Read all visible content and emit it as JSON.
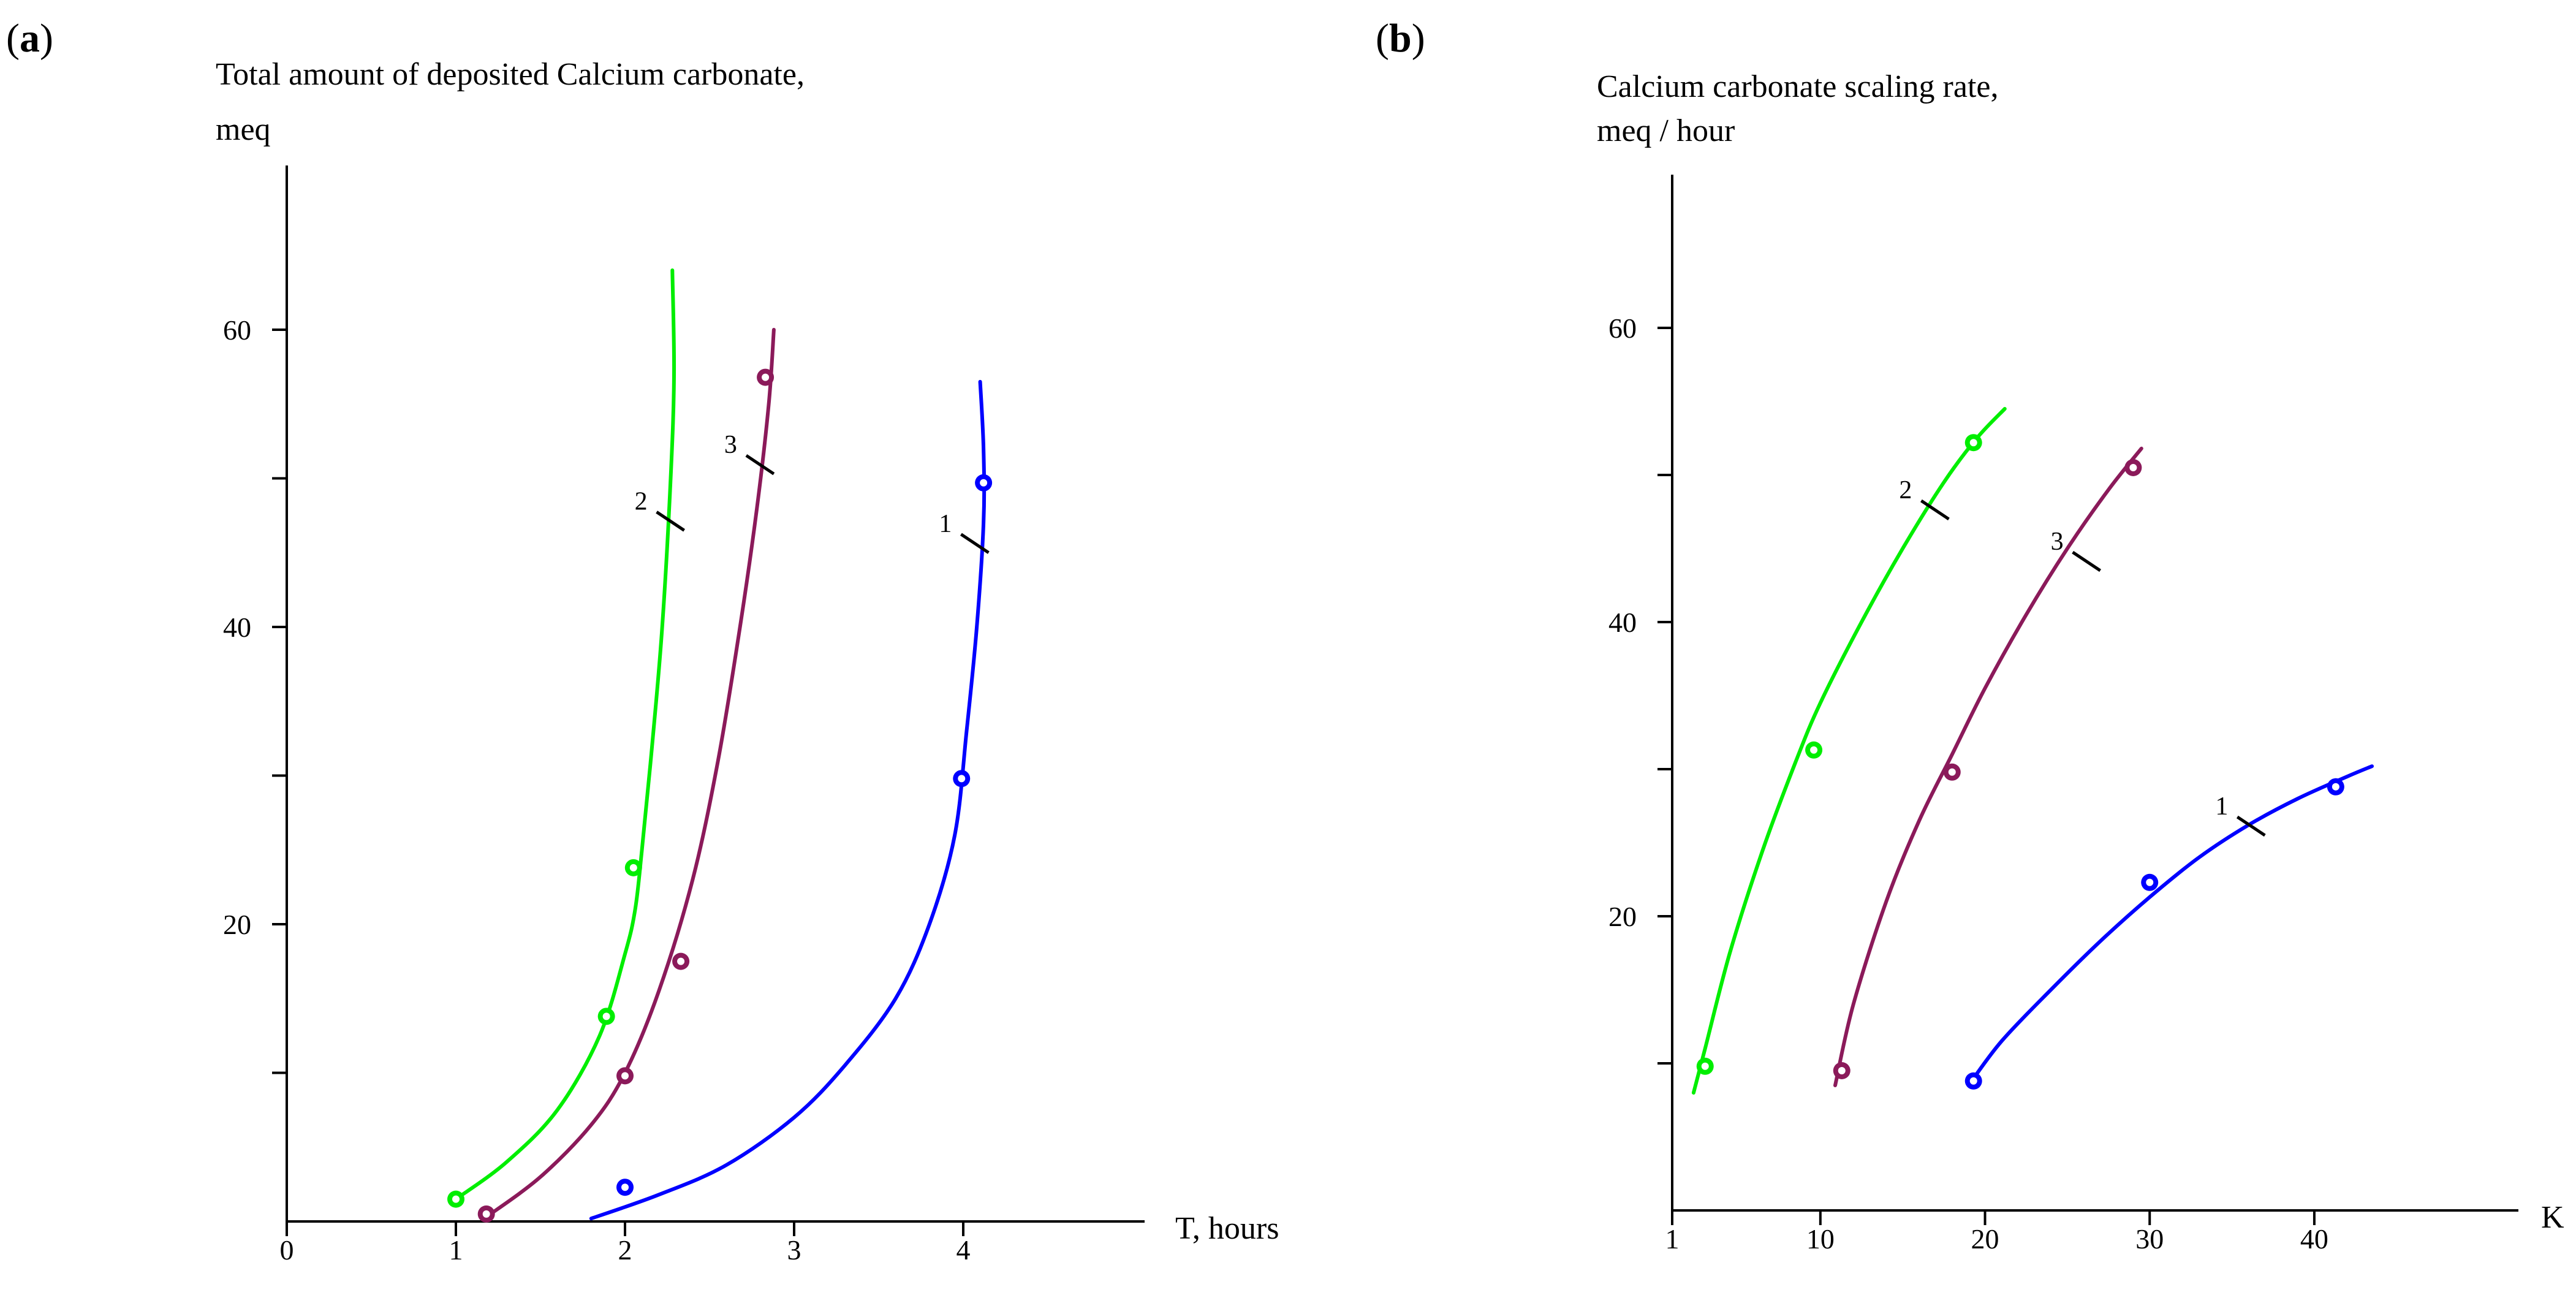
{
  "chart_data": [
    {
      "type": "line",
      "panel": "(a)",
      "panel_letter": "a",
      "title_line1": "Total amount of deposited Calcium carbonate,",
      "title_line2": "meq",
      "xlabel": "T, hours",
      "ylabel": "meq",
      "xlim": [
        0,
        5
      ],
      "ylim": [
        0,
        70
      ],
      "xticks": [
        0,
        1,
        2,
        3,
        4
      ],
      "xtick_labels": [
        "0",
        "1",
        "2",
        "3",
        "4"
      ],
      "yticks": [
        10,
        20,
        30,
        40,
        50,
        60
      ],
      "ytick_labels": [
        "",
        "20",
        "",
        "40",
        "",
        "60"
      ],
      "series": [
        {
          "name": "1",
          "color": "#0000ff",
          "curve_x": [
            1.8,
            2.2,
            2.6,
            3.0,
            3.3,
            3.6,
            3.8,
            3.95,
            4.02,
            4.08,
            4.12,
            4.12,
            4.1
          ],
          "curve_y": [
            0.2,
            1.8,
            3.8,
            7.0,
            10.5,
            15.0,
            20.0,
            26.0,
            33.0,
            40.0,
            47.0,
            52.0,
            56.5
          ],
          "points_x": [
            2.0,
            3.99,
            4.12
          ],
          "points_y": [
            2.3,
            29.8,
            49.7
          ],
          "label_x": 4.15,
          "label_y": 45.0
        },
        {
          "name": "2",
          "color": "#00ee00",
          "curve_x": [
            1.0,
            1.3,
            1.6,
            1.85,
            2.0,
            2.06,
            2.1,
            2.16,
            2.22,
            2.27,
            2.29,
            2.28
          ],
          "curve_y": [
            1.5,
            4.0,
            7.5,
            12.5,
            18.0,
            21.0,
            25.0,
            32.0,
            40.0,
            50.0,
            57.0,
            64.0
          ],
          "points_x": [
            1.0,
            1.89,
            2.05
          ],
          "points_y": [
            1.5,
            13.8,
            23.8
          ],
          "label_x": 2.35,
          "label_y": 46.5
        },
        {
          "name": "3",
          "color": "#8b1a5a",
          "curve_x": [
            1.18,
            1.5,
            1.8,
            2.0,
            2.2,
            2.4,
            2.55,
            2.68,
            2.78,
            2.85,
            2.88
          ],
          "curve_y": [
            0.3,
            3.0,
            6.5,
            10.0,
            15.5,
            23.0,
            31.0,
            40.0,
            48.0,
            55.0,
            60.0
          ],
          "points_x": [
            1.18,
            2.0,
            2.33,
            2.83
          ],
          "points_y": [
            0.5,
            9.8,
            17.5,
            56.8
          ],
          "label_x": 2.88,
          "label_y": 50.3
        }
      ]
    },
    {
      "type": "line",
      "panel": "(b)",
      "panel_letter": "b",
      "title_line1": "Calcium carbonate scaling rate,",
      "title_line2": "meq / hour",
      "xlabel": "K",
      "ylabel": "meq / hour",
      "xlim": [
        1,
        52
      ],
      "ylim": [
        0,
        70
      ],
      "xticks": [
        1,
        10,
        20,
        30,
        40
      ],
      "xtick_labels": [
        "1",
        "10",
        "20",
        "30",
        "40"
      ],
      "yticks": [
        10,
        20,
        30,
        40,
        50,
        60
      ],
      "ytick_labels": [
        "",
        "20",
        "",
        "40",
        "",
        "60"
      ],
      "series": [
        {
          "name": "1",
          "color": "#0000ff",
          "curve_x": [
            19.0,
            21.0,
            24.0,
            27.0,
            30.0,
            33.0,
            36.0,
            39.0,
            42.0,
            43.5
          ],
          "curve_y": [
            8.5,
            11.5,
            15.0,
            18.3,
            21.3,
            24.0,
            26.2,
            28.0,
            29.5,
            30.2
          ],
          "points_x": [
            19.3,
            30.0,
            41.3
          ],
          "points_y": [
            8.8,
            22.3,
            28.8
          ],
          "label_x": 37.0,
          "label_y": 25.5
        },
        {
          "name": "2",
          "color": "#00ee00",
          "curve_x": [
            2.3,
            3.0,
            4.5,
            6.5,
            8.5,
            10.0,
            12.5,
            15.0,
            17.5,
            19.5,
            21.2
          ],
          "curve_y": [
            8.0,
            11.0,
            17.5,
            24.5,
            30.5,
            34.5,
            40.0,
            45.0,
            49.5,
            52.5,
            54.5
          ],
          "points_x": [
            3.0,
            9.6,
            19.3
          ],
          "points_y": [
            9.8,
            31.3,
            52.2
          ],
          "label_x": 17.8,
          "label_y": 47.0
        },
        {
          "name": "3",
          "color": "#8b1a5a",
          "curve_x": [
            10.9,
            12.0,
            14.0,
            16.0,
            18.0,
            20.0,
            22.5,
            25.0,
            27.5,
            29.5
          ],
          "curve_y": [
            8.5,
            14.0,
            21.0,
            26.5,
            31.0,
            35.5,
            40.5,
            45.0,
            49.0,
            51.8
          ],
          "points_x": [
            11.3,
            18.0,
            29.0
          ],
          "points_y": [
            9.5,
            29.8,
            50.5
          ],
          "label_x": 27.0,
          "label_y": 43.5
        }
      ]
    }
  ]
}
